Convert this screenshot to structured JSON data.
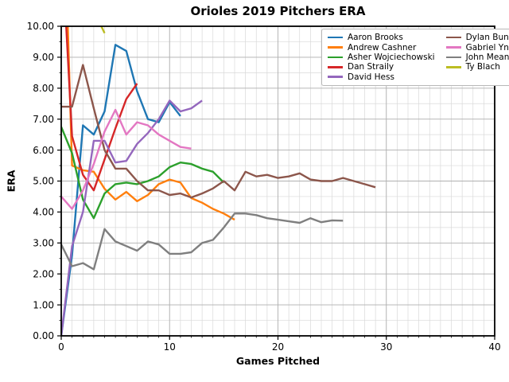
{
  "chart_data": {
    "type": "line",
    "title": "Orioles 2019 Pitchers ERA",
    "xlabel": "Games Pitched",
    "ylabel": "ERA",
    "xlim": [
      0,
      40
    ],
    "ylim": [
      0,
      10
    ],
    "x_unit": "game number (0-indexed)",
    "xticks": [
      {
        "value": 0,
        "label": "0"
      },
      {
        "value": 10,
        "label": "10"
      },
      {
        "value": 20,
        "label": "20"
      },
      {
        "value": 30,
        "label": "30"
      },
      {
        "value": 40,
        "label": "40"
      }
    ],
    "yticks": [
      {
        "value": 0,
        "label": "0.00"
      },
      {
        "value": 1,
        "label": "1.00"
      },
      {
        "value": 2,
        "label": "2.00"
      },
      {
        "value": 3,
        "label": "3.00"
      },
      {
        "value": 4,
        "label": "4.00"
      },
      {
        "value": 5,
        "label": "5.00"
      },
      {
        "value": 6,
        "label": "6.00"
      },
      {
        "value": 7,
        "label": "7.00"
      },
      {
        "value": 8,
        "label": "8.00"
      },
      {
        "value": 9,
        "label": "9.00"
      },
      {
        "value": 10,
        "label": "10.00"
      }
    ],
    "grid": {
      "enabled": true,
      "x_minor_step": 1,
      "y_minor_step": 0.5,
      "x_major_step": 10,
      "y_major_step": 1,
      "major_color": "#b0b0b0",
      "minor_color": "#d9d9d9"
    },
    "legend": {
      "position": "upper right",
      "columns": 2,
      "rows": 5
    },
    "clip_note": "values above 10.00 are clipped at the top of the axes",
    "series": [
      {
        "name": "Aaron Brooks",
        "color": "#1f77b4",
        "values": [
          0.0,
          2.6,
          6.8,
          6.5,
          7.25,
          9.4,
          9.2,
          7.9,
          7.0,
          6.9,
          7.55,
          7.1
        ]
      },
      {
        "name": "Andrew Cashner",
        "color": "#ff7f0e",
        "values": [
          17.0,
          5.5,
          5.35,
          5.3,
          4.75,
          4.4,
          4.65,
          4.35,
          4.55,
          4.9,
          5.05,
          4.95,
          4.45,
          4.3,
          4.1,
          3.95,
          3.75
        ]
      },
      {
        "name": "Asher Wojciechowski",
        "color": "#2ca02c",
        "values": [
          6.75,
          5.9,
          4.4,
          3.8,
          4.6,
          4.9,
          4.95,
          4.9,
          5.0,
          5.15,
          5.45,
          5.6,
          5.55,
          5.4,
          5.3,
          4.95
        ]
      },
      {
        "name": "Dan Straily",
        "color": "#d62728",
        "values": [
          13.0,
          6.45,
          5.2,
          4.7,
          5.7,
          6.7,
          7.65,
          8.15
        ]
      },
      {
        "name": "David Hess",
        "color": "#9467bd",
        "values": [
          0.0,
          2.9,
          4.0,
          6.3,
          6.3,
          5.6,
          5.65,
          6.2,
          6.55,
          7.0,
          7.6,
          7.25,
          7.35,
          7.6
        ]
      },
      {
        "name": "Dylan Bundy",
        "color": "#8c564b",
        "values": [
          7.4,
          7.4,
          8.75,
          7.35,
          6.0,
          5.4,
          5.4,
          5.0,
          4.7,
          4.7,
          4.55,
          4.6,
          4.47,
          4.6,
          4.76,
          5.0,
          4.7,
          5.3,
          5.15,
          5.2,
          5.1,
          5.15,
          5.25,
          5.05,
          5.0,
          5.0,
          5.1,
          5.0,
          4.9,
          4.8
        ]
      },
      {
        "name": "Gabriel Ynoa",
        "color": "#e377c2",
        "values": [
          4.5,
          4.1,
          4.7,
          5.55,
          6.6,
          7.3,
          6.5,
          6.9,
          6.8,
          6.5,
          6.3,
          6.1,
          6.05
        ]
      },
      {
        "name": "John Means",
        "color": "#7f7f7f",
        "values": [
          2.95,
          2.25,
          2.35,
          2.15,
          3.45,
          3.05,
          2.9,
          2.75,
          3.05,
          2.95,
          2.65,
          2.65,
          2.7,
          3.0,
          3.1,
          3.5,
          3.95,
          3.95,
          3.9,
          3.8,
          3.75,
          3.7,
          3.65,
          3.8,
          3.67,
          3.73,
          3.72
        ]
      },
      {
        "name": "Ty Blach",
        "color": "#bcbd22",
        "values": [
          14.0,
          12.0,
          11.0,
          10.5,
          9.78
        ]
      }
    ]
  }
}
